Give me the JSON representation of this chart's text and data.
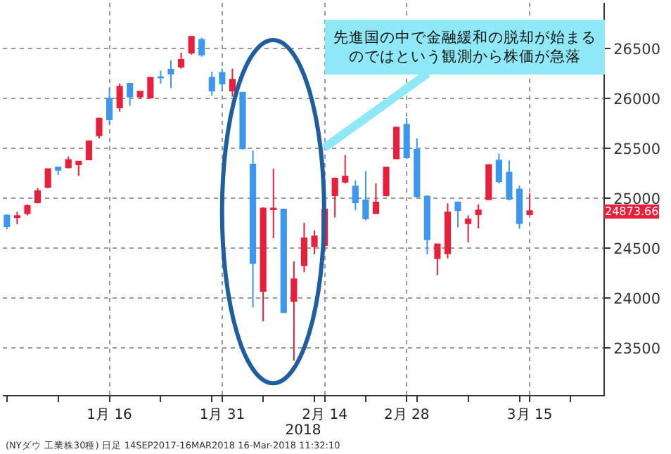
{
  "chart_data": {
    "type": "candlestick",
    "categories": [
      null,
      null,
      null,
      null,
      null,
      null,
      null,
      null,
      null,
      null,
      "1月 16",
      null,
      null,
      null,
      null,
      null,
      null,
      null,
      null,
      null,
      null,
      "1月 31",
      null,
      null,
      null,
      null,
      null,
      null,
      null,
      null,
      null,
      "2月 14",
      null,
      null,
      null,
      null,
      null,
      null,
      null,
      "2月 28",
      null,
      null,
      null,
      null,
      null,
      null,
      null,
      null,
      null,
      null,
      null,
      "3月 15"
    ],
    "ohlc": [
      [
        24830,
        24840,
        24690,
        24720
      ],
      [
        24810,
        24864,
        24741,
        24824
      ],
      [
        24850,
        24940,
        24830,
        24925
      ],
      [
        24960,
        25105,
        24950,
        25075
      ],
      [
        25115,
        25300,
        25100,
        25295
      ],
      [
        25310,
        25315,
        25235,
        25285
      ],
      [
        25310,
        25420,
        25300,
        25385
      ],
      [
        25340,
        25370,
        25225,
        25370
      ],
      [
        25390,
        25575,
        25390,
        25575
      ],
      [
        25630,
        25810,
        25600,
        25800
      ],
      [
        26000,
        26106,
        25736,
        25790
      ],
      [
        25910,
        26150,
        25870,
        26120
      ],
      [
        26150,
        26150,
        25930,
        26020
      ],
      [
        26020,
        26070,
        26000,
        26070
      ],
      [
        26010,
        26215,
        26000,
        26210
      ],
      [
        26215,
        26280,
        26150,
        26210
      ],
      [
        26290,
        26384,
        26106,
        26250
      ],
      [
        26320,
        26460,
        26300,
        26390
      ],
      [
        26460,
        26620,
        26440,
        26620
      ],
      [
        26590,
        26610,
        26420,
        26440
      ],
      [
        26210,
        26270,
        26030,
        26080
      ],
      [
        26260,
        26300,
        26070,
        26150
      ],
      [
        26080,
        26300,
        26020,
        26190
      ],
      [
        26060,
        26060,
        25490,
        25500
      ],
      [
        25340,
        25480,
        23907,
        24350
      ],
      [
        24070,
        24910,
        23768,
        24900
      ],
      [
        24890,
        25300,
        24600,
        24900
      ],
      [
        24890,
        24890,
        23850,
        23860
      ],
      [
        23970,
        24370,
        23375,
        24190
      ],
      [
        24330,
        24755,
        24260,
        24600
      ],
      [
        24520,
        24680,
        24440,
        24620
      ],
      [
        24530,
        24900,
        24480,
        24890
      ],
      [
        25030,
        25210,
        24810,
        25200
      ],
      [
        25165,
        25435,
        25150,
        25220
      ],
      [
        25120,
        25180,
        24880,
        24960
      ],
      [
        24980,
        25273,
        24780,
        24800
      ],
      [
        24850,
        25150,
        24850,
        24960
      ],
      [
        25030,
        25310,
        25020,
        25310
      ],
      [
        25400,
        25720,
        25400,
        25710
      ],
      [
        25740,
        25805,
        25400,
        25410
      ],
      [
        25490,
        25600,
        25010,
        25020
      ],
      [
        25020,
        25030,
        24440,
        24590
      ],
      [
        24400,
        24540,
        24231,
        24540
      ],
      [
        24450,
        24949,
        24400,
        24860
      ],
      [
        24960,
        24970,
        24710,
        24880
      ],
      [
        24750,
        24830,
        24560,
        24790
      ],
      [
        24840,
        24940,
        24700,
        24880
      ],
      [
        24990,
        25340,
        24990,
        25335
      ],
      [
        25380,
        25450,
        25150,
        25170
      ],
      [
        25260,
        25380,
        24980,
        24995
      ],
      [
        25090,
        25130,
        24695,
        24750
      ],
      [
        24840,
        25050,
        24830,
        24873.66
      ]
    ],
    "ylim": [
      23030,
      26960
    ],
    "yticks": [
      23500,
      24000,
      24500,
      25000,
      25500,
      26000,
      26500
    ],
    "grid": true,
    "xlabel": "2018",
    "annotations": [
      "先進国の中で金融緩和の脱却が始まるのではという観測から株価が急落",
      "24873.66",
      "(NYダウ 工業株30種) 日足 14SEP2017-16MAR2018 16-Mar-2018 11:32:10"
    ]
  }
}
